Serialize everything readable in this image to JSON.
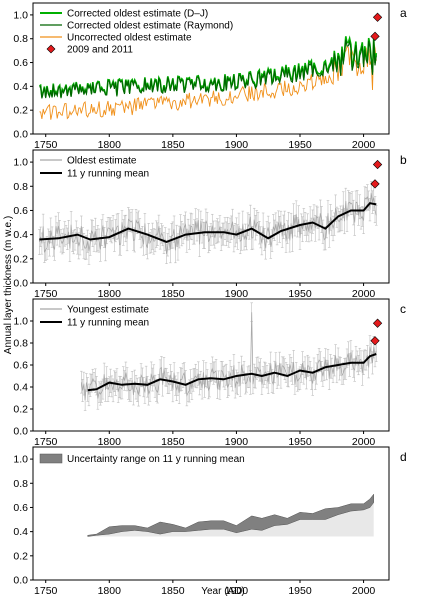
{
  "figure": {
    "ylabel": "Annual layer thickness (m w.e.)",
    "xlabel": "Year (AD)"
  },
  "colors": {
    "dj": "#00b000",
    "raymond": "#006400",
    "uncorrected": "#f0901a",
    "marker": "#e41a1c",
    "gray": "#a8a8a8",
    "mean": "#000000",
    "band": "#808080",
    "band_fill": "#e8e8e8"
  },
  "chart_data": [
    {
      "panel": "a",
      "type": "line",
      "xlim": [
        1740,
        2020
      ],
      "ylim": [
        0,
        1.1
      ],
      "xticks": [
        1750,
        1800,
        1850,
        1900,
        1950,
        2000
      ],
      "yticks": [
        "0.0",
        "0.2",
        "0.4",
        "0.6",
        "0.8",
        "1.0"
      ],
      "legend_position": "top-left",
      "series": [
        {
          "name": "Corrected oldest estimate (D–J)",
          "x_range": [
            1745,
            2010
          ],
          "trend": [
            [
              1745,
              0.37
            ],
            [
              1800,
              0.39
            ],
            [
              1850,
              0.42
            ],
            [
              1900,
              0.44
            ],
            [
              1950,
              0.53
            ],
            [
              1975,
              0.59
            ],
            [
              1990,
              0.66
            ],
            [
              2000,
              0.7
            ],
            [
              2008,
              0.7
            ]
          ]
        },
        {
          "name": "Corrected oldest estimate (Raymond)",
          "x_range": [
            1745,
            2010
          ],
          "trend": [
            [
              1745,
              0.36
            ],
            [
              1800,
              0.38
            ],
            [
              1850,
              0.41
            ],
            [
              1900,
              0.43
            ],
            [
              1950,
              0.51
            ],
            [
              1975,
              0.57
            ],
            [
              1990,
              0.63
            ],
            [
              2000,
              0.67
            ],
            [
              2008,
              0.68
            ]
          ]
        },
        {
          "name": "Uncorrected oldest estimate",
          "x_range": [
            1745,
            2010
          ],
          "trend": [
            [
              1745,
              0.18
            ],
            [
              1800,
              0.21
            ],
            [
              1850,
              0.26
            ],
            [
              1900,
              0.32
            ],
            [
              1950,
              0.4
            ],
            [
              1975,
              0.5
            ],
            [
              1990,
              0.58
            ],
            [
              2000,
              0.63
            ],
            [
              2008,
              0.66
            ]
          ]
        },
        {
          "name": "2009 and 2011",
          "points": [
            [
              2009,
              0.82
            ],
            [
              2011,
              0.98
            ]
          ]
        }
      ]
    },
    {
      "panel": "b",
      "type": "line",
      "xlim": [
        1740,
        2020
      ],
      "ylim": [
        0,
        1.1
      ],
      "xticks": [
        1750,
        1800,
        1850,
        1900,
        1950,
        2000
      ],
      "yticks": [
        "0.0",
        "0.2",
        "0.4",
        "0.6",
        "0.8",
        "1.0"
      ],
      "legend_position": "top-left",
      "series": [
        {
          "name": "Oldest estimate",
          "x_range": [
            1745,
            2010
          ]
        },
        {
          "name": "11 y running mean",
          "points": [
            [
              1745,
              0.36
            ],
            [
              1760,
              0.37
            ],
            [
              1775,
              0.4
            ],
            [
              1785,
              0.36
            ],
            [
              1800,
              0.38
            ],
            [
              1815,
              0.45
            ],
            [
              1830,
              0.4
            ],
            [
              1845,
              0.34
            ],
            [
              1860,
              0.4
            ],
            [
              1875,
              0.42
            ],
            [
              1890,
              0.42
            ],
            [
              1900,
              0.4
            ],
            [
              1912,
              0.45
            ],
            [
              1925,
              0.37
            ],
            [
              1935,
              0.43
            ],
            [
              1950,
              0.48
            ],
            [
              1960,
              0.5
            ],
            [
              1970,
              0.45
            ],
            [
              1980,
              0.55
            ],
            [
              1990,
              0.6
            ],
            [
              2000,
              0.6
            ],
            [
              2005,
              0.66
            ],
            [
              2010,
              0.65
            ]
          ]
        },
        {
          "name": "",
          "points": [
            [
              2009,
              0.82
            ],
            [
              2011,
              0.98
            ]
          ]
        }
      ]
    },
    {
      "panel": "c",
      "type": "line",
      "xlim": [
        1740,
        2020
      ],
      "ylim": [
        0,
        1.2
      ],
      "xticks": [
        1750,
        1800,
        1850,
        1900,
        1950,
        2000
      ],
      "yticks": [
        "0.0",
        "0.2",
        "0.4",
        "0.6",
        "0.8",
        "1.0"
      ],
      "legend_position": "top-left",
      "series": [
        {
          "name": "Youngest estimate",
          "x_range": [
            1778,
            2010
          ]
        },
        {
          "name": "11 y running mean",
          "points": [
            [
              1783,
              0.37
            ],
            [
              1790,
              0.38
            ],
            [
              1800,
              0.44
            ],
            [
              1810,
              0.42
            ],
            [
              1820,
              0.43
            ],
            [
              1830,
              0.42
            ],
            [
              1840,
              0.47
            ],
            [
              1850,
              0.45
            ],
            [
              1860,
              0.42
            ],
            [
              1870,
              0.47
            ],
            [
              1880,
              0.48
            ],
            [
              1890,
              0.47
            ],
            [
              1900,
              0.5
            ],
            [
              1912,
              0.52
            ],
            [
              1920,
              0.5
            ],
            [
              1930,
              0.53
            ],
            [
              1940,
              0.5
            ],
            [
              1950,
              0.55
            ],
            [
              1960,
              0.53
            ],
            [
              1970,
              0.58
            ],
            [
              1980,
              0.6
            ],
            [
              1990,
              0.62
            ],
            [
              2000,
              0.62
            ],
            [
              2005,
              0.68
            ],
            [
              2010,
              0.7
            ]
          ]
        },
        {
          "name": "",
          "points": [
            [
              2009,
              0.82
            ],
            [
              2011,
              0.98
            ]
          ]
        }
      ]
    },
    {
      "panel": "d",
      "type": "area",
      "xlim": [
        1740,
        2020
      ],
      "ylim": [
        0,
        1.1
      ],
      "xticks": [
        1750,
        1800,
        1850,
        1900,
        1950,
        2000
      ],
      "yticks": [
        "0.0",
        "0.2",
        "0.4",
        "0.6",
        "0.8",
        "1.0"
      ],
      "legend_position": "top-left",
      "baseline": 0.36,
      "series": [
        {
          "name": "Uncertainty range on 11 y running mean",
          "x": [
            1783,
            1790,
            1800,
            1810,
            1820,
            1830,
            1840,
            1850,
            1860,
            1870,
            1880,
            1890,
            1900,
            1912,
            1920,
            1930,
            1940,
            1950,
            1960,
            1970,
            1980,
            1990,
            2000,
            2005,
            2008
          ],
          "lower": [
            0.36,
            0.37,
            0.38,
            0.4,
            0.41,
            0.4,
            0.38,
            0.4,
            0.4,
            0.41,
            0.42,
            0.42,
            0.39,
            0.42,
            0.41,
            0.45,
            0.46,
            0.5,
            0.5,
            0.5,
            0.54,
            0.57,
            0.58,
            0.6,
            0.64
          ],
          "upper": [
            0.37,
            0.38,
            0.44,
            0.45,
            0.45,
            0.43,
            0.48,
            0.46,
            0.43,
            0.48,
            0.49,
            0.49,
            0.45,
            0.53,
            0.51,
            0.54,
            0.51,
            0.56,
            0.55,
            0.59,
            0.6,
            0.63,
            0.63,
            0.67,
            0.71
          ]
        }
      ]
    }
  ]
}
